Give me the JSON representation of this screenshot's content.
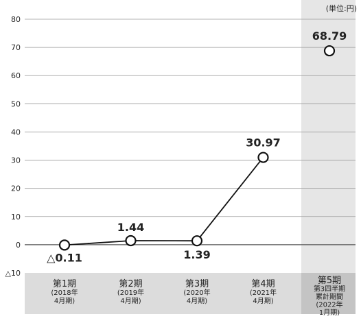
{
  "chart_data": {
    "type": "line",
    "unit_label": "(単位:円)",
    "ylim": [
      -10,
      80
    ],
    "yticks": [
      {
        "value": 80,
        "label": "80"
      },
      {
        "value": 70,
        "label": "70"
      },
      {
        "value": 60,
        "label": "60"
      },
      {
        "value": 50,
        "label": "50"
      },
      {
        "value": 40,
        "label": "40"
      },
      {
        "value": 30,
        "label": "30"
      },
      {
        "value": 20,
        "label": "20"
      },
      {
        "value": 10,
        "label": "10"
      },
      {
        "value": 0,
        "label": "0"
      },
      {
        "value": -10,
        "label": "△10"
      }
    ],
    "categories": [
      {
        "lines": [
          "第1期",
          "(2018年",
          "4月期)"
        ]
      },
      {
        "lines": [
          "第2期",
          "(2019年",
          "4月期)"
        ]
      },
      {
        "lines": [
          "第3期",
          "(2020年",
          "4月期)"
        ]
      },
      {
        "lines": [
          "第4期",
          "(2021年",
          "4月期)"
        ]
      },
      {
        "lines": [
          "第5期",
          "第3四半期",
          "累計期間",
          "(2022年",
          "1月期)"
        ]
      }
    ],
    "series": [
      {
        "values": [
          -0.11,
          1.44,
          1.39,
          30.97,
          68.79
        ],
        "labels": [
          "△0.11",
          "1.44",
          "1.39",
          "30.97",
          "68.79"
        ]
      }
    ],
    "highlight_category_index": 4,
    "grid": true,
    "colors": {
      "line": "#111111",
      "marker_fill": "#ffffff",
      "grid": "#9a9a9a",
      "highlight_band": "#e6e6e6",
      "category_band": "#dcdcdc",
      "category_highlight": "#c4c4c4"
    }
  }
}
